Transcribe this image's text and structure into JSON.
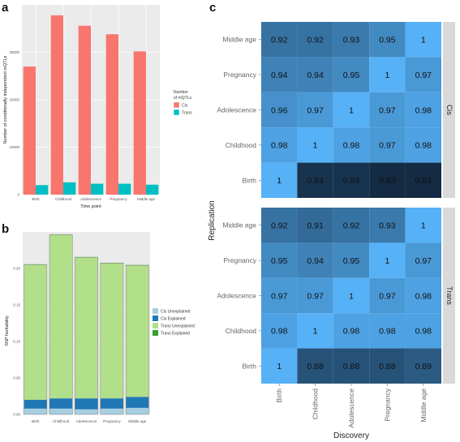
{
  "panels": {
    "a": "a",
    "b": "b",
    "c": "c"
  },
  "chart_data": [
    {
      "panel": "a",
      "type": "bar",
      "categories": [
        "Birth",
        "Childhood",
        "Adolescence",
        "Pregnancy",
        "Middle age"
      ],
      "series": [
        {
          "name": "Cis",
          "values": [
            27000,
            37800,
            35600,
            33800,
            30200
          ],
          "color": "#f8766d"
        },
        {
          "name": "Trans",
          "values": [
            2000,
            2600,
            2300,
            2300,
            2100
          ],
          "color": "#00bfc4"
        }
      ],
      "xlabel": "Time point",
      "ylabel": "Number of conditionally independent mQTLs",
      "ylim": [
        0,
        40000
      ],
      "yticks": [
        0,
        10000,
        20000,
        30000
      ],
      "legend_title": [
        "Number",
        "of mQTLs"
      ],
      "legend_position": "right",
      "grid": true
    },
    {
      "panel": "b",
      "type": "bar",
      "stacked": true,
      "categories": [
        "Birth",
        "Childhood",
        "Adolescence",
        "Pregnancy",
        "Middle age"
      ],
      "series": [
        {
          "name": "Cis Unexplained",
          "values": [
            0.008,
            0.008,
            0.007,
            0.008,
            0.009
          ],
          "color": "#a6cee3"
        },
        {
          "name": "Cis Explained",
          "values": [
            0.012,
            0.014,
            0.015,
            0.014,
            0.015
          ],
          "color": "#1f78b4"
        },
        {
          "name": "Trans Unexplained",
          "values": [
            0.185,
            0.224,
            0.193,
            0.185,
            0.18
          ],
          "color": "#b2df8a"
        },
        {
          "name": "Trans Explained",
          "values": [
            0.0005,
            0.0005,
            0.0005,
            0.0005,
            0.0005
          ],
          "color": "#33a02c"
        }
      ],
      "ylabel": "SNP heritability",
      "ylim": [
        0,
        0.25
      ],
      "yticks": [
        0.0,
        0.05,
        0.1,
        0.15,
        0.2
      ],
      "ytick_labels": [
        "0.00",
        "0.05",
        "0.10",
        "0.15",
        "0.20"
      ],
      "legend_position": "right",
      "grid": true
    },
    {
      "panel": "c",
      "type": "heatmap",
      "xlabel": "Discovery",
      "ylabel": "Replication",
      "x": [
        "Birth",
        "Childhood",
        "Adolescence",
        "Pregnancy",
        "Middle age"
      ],
      "y": [
        "Middle age",
        "Pregnancy",
        "Adolescence",
        "Childhood",
        "Birth"
      ],
      "facets": [
        {
          "name": "Cis",
          "values": [
            [
              0.92,
              0.92,
              0.93,
              0.95,
              1
            ],
            [
              0.94,
              0.94,
              0.95,
              1,
              0.97
            ],
            [
              0.96,
              0.97,
              1,
              0.97,
              0.98
            ],
            [
              0.98,
              1,
              0.98,
              0.97,
              0.98
            ],
            [
              1,
              0.84,
              0.84,
              0.83,
              0.83
            ]
          ]
        },
        {
          "name": "Trans",
          "values": [
            [
              0.92,
              0.91,
              0.92,
              0.93,
              1
            ],
            [
              0.95,
              0.94,
              0.95,
              1,
              0.97
            ],
            [
              0.97,
              0.97,
              1,
              0.97,
              0.98
            ],
            [
              0.98,
              1,
              0.98,
              0.98,
              0.98
            ],
            [
              1,
              0.88,
              0.88,
              0.88,
              0.89
            ]
          ]
        }
      ],
      "color_low": "#132b43",
      "color_high": "#56b1f7"
    }
  ]
}
